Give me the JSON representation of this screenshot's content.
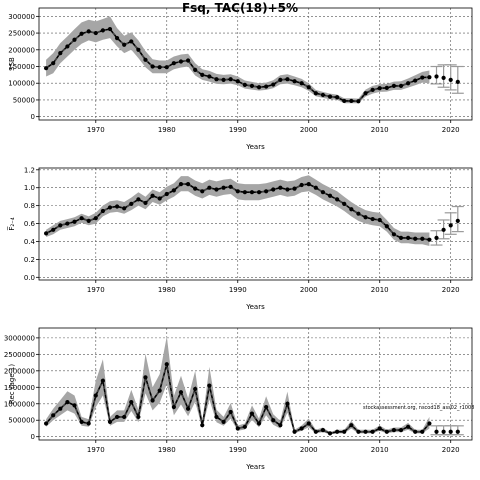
{
  "figure": {
    "title": "Fsq, TAC(18)+5%",
    "watermark": "stockassessment.org, nscod18_ass02_r1008"
  },
  "chart_data": [
    {
      "type": "line",
      "id": "ssb",
      "ylabel": "SSB",
      "xlabel": "Years",
      "xlim": [
        1962,
        2023
      ],
      "ylim": [
        -10000,
        325000
      ],
      "xticks": [
        1970,
        1980,
        1990,
        2000,
        2010,
        2020
      ],
      "yticks": [
        0,
        50000,
        100000,
        150000,
        200000,
        250000,
        300000
      ],
      "grid": true,
      "series": [
        {
          "role": "estimate",
          "x": [
            1963,
            1964,
            1965,
            1966,
            1967,
            1968,
            1969,
            1970,
            1971,
            1972,
            1973,
            1974,
            1975,
            1976,
            1977,
            1978,
            1979,
            1980,
            1981,
            1982,
            1983,
            1984,
            1985,
            1986,
            1987,
            1988,
            1989,
            1990,
            1991,
            1992,
            1993,
            1994,
            1995,
            1996,
            1997,
            1998,
            1999,
            2000,
            2001,
            2002,
            2003,
            2004,
            2005,
            2006,
            2007,
            2008,
            2009,
            2010,
            2011,
            2012,
            2013,
            2014,
            2015,
            2016,
            2017
          ],
          "values": [
            145000,
            160000,
            190000,
            210000,
            230000,
            248000,
            255000,
            250000,
            258000,
            262000,
            235000,
            215000,
            225000,
            200000,
            170000,
            150000,
            148000,
            148000,
            160000,
            165000,
            168000,
            140000,
            125000,
            120000,
            112000,
            110000,
            112000,
            106000,
            95000,
            92000,
            88000,
            90000,
            96000,
            110000,
            112000,
            106000,
            100000,
            88000,
            70000,
            65000,
            60000,
            58000,
            47000,
            47000,
            46000,
            70000,
            80000,
            85000,
            86000,
            92000,
            92000,
            100000,
            108000,
            117000,
            118000
          ],
          "lower": [
            120000,
            130000,
            160000,
            180000,
            200000,
            218000,
            228000,
            222000,
            230000,
            235000,
            210000,
            190000,
            200000,
            175000,
            148000,
            130000,
            130000,
            130000,
            142000,
            147000,
            150000,
            123000,
            110000,
            105000,
            98000,
            97000,
            99000,
            94000,
            84000,
            81000,
            78000,
            80000,
            85000,
            97000,
            99000,
            94000,
            88000,
            77000,
            61000,
            56000,
            52000,
            50000,
            40000,
            40000,
            40000,
            60000,
            69000,
            74000,
            75000,
            80000,
            80000,
            87000,
            94000,
            102000,
            100000
          ],
          "upper": [
            170000,
            190000,
            220000,
            240000,
            262000,
            282000,
            290000,
            285000,
            292000,
            300000,
            265000,
            242000,
            252000,
            228000,
            196000,
            172000,
            168000,
            168000,
            180000,
            186000,
            188000,
            160000,
            142000,
            137000,
            128000,
            125000,
            127000,
            120000,
            108000,
            104000,
            100000,
            102000,
            109000,
            124000,
            127000,
            120000,
            113000,
            100000,
            80000,
            74000,
            69000,
            66000,
            55000,
            55000,
            54000,
            81000,
            92000,
            97000,
            98000,
            105000,
            106000,
            114000,
            124000,
            134000,
            138000
          ]
        },
        {
          "role": "forecast",
          "x": [
            2018,
            2019,
            2020,
            2021
          ],
          "values": [
            120000,
            116000,
            110000,
            104000
          ],
          "lower": [
            98000,
            88000,
            80000,
            70000
          ],
          "upper": [
            150000,
            155000,
            155000,
            150000
          ]
        }
      ]
    },
    {
      "type": "line",
      "id": "fbar",
      "ylabel": "F̅₂₋₄",
      "xlabel": "Years",
      "xlim": [
        1962,
        2023
      ],
      "ylim": [
        -0.03,
        1.22
      ],
      "xticks": [
        1970,
        1980,
        1990,
        2000,
        2010,
        2020
      ],
      "yticks": [
        0.0,
        0.2,
        0.4,
        0.6,
        0.8,
        1.0,
        1.2
      ],
      "ytick_labels": [
        "0.0",
        "0.2",
        "0.4",
        "0.6",
        "0.8",
        "1.0",
        "1.2"
      ],
      "grid": true,
      "series": [
        {
          "role": "estimate",
          "x": [
            1963,
            1964,
            1965,
            1966,
            1967,
            1968,
            1969,
            1970,
            1971,
            1972,
            1973,
            1974,
            1975,
            1976,
            1977,
            1978,
            1979,
            1980,
            1981,
            1982,
            1983,
            1984,
            1985,
            1986,
            1987,
            1988,
            1989,
            1990,
            1991,
            1992,
            1993,
            1994,
            1995,
            1996,
            1997,
            1998,
            1999,
            2000,
            2001,
            2002,
            2003,
            2004,
            2005,
            2006,
            2007,
            2008,
            2009,
            2010,
            2011,
            2012,
            2013,
            2014,
            2015,
            2016,
            2017
          ],
          "values": [
            0.49,
            0.53,
            0.58,
            0.6,
            0.62,
            0.66,
            0.63,
            0.66,
            0.74,
            0.78,
            0.79,
            0.77,
            0.82,
            0.87,
            0.83,
            0.91,
            0.88,
            0.93,
            0.97,
            1.04,
            1.04,
            0.99,
            0.96,
            1.0,
            0.98,
            1.0,
            1.01,
            0.96,
            0.95,
            0.95,
            0.95,
            0.96,
            0.98,
            1.0,
            0.98,
            0.99,
            1.03,
            1.04,
            1.0,
            0.95,
            0.91,
            0.87,
            0.82,
            0.76,
            0.71,
            0.67,
            0.65,
            0.64,
            0.57,
            0.48,
            0.44,
            0.44,
            0.43,
            0.43,
            0.42
          ],
          "lower": [
            0.45,
            0.48,
            0.53,
            0.55,
            0.57,
            0.61,
            0.58,
            0.6,
            0.68,
            0.72,
            0.73,
            0.71,
            0.75,
            0.8,
            0.76,
            0.84,
            0.81,
            0.86,
            0.9,
            0.96,
            0.96,
            0.91,
            0.88,
            0.92,
            0.9,
            0.92,
            0.93,
            0.87,
            0.86,
            0.86,
            0.86,
            0.88,
            0.9,
            0.92,
            0.9,
            0.91,
            0.95,
            0.96,
            0.92,
            0.87,
            0.83,
            0.79,
            0.74,
            0.68,
            0.63,
            0.6,
            0.58,
            0.57,
            0.51,
            0.42,
            0.38,
            0.38,
            0.37,
            0.37,
            0.35
          ],
          "upper": [
            0.53,
            0.58,
            0.63,
            0.65,
            0.67,
            0.71,
            0.68,
            0.72,
            0.8,
            0.85,
            0.86,
            0.84,
            0.89,
            0.95,
            0.9,
            0.98,
            0.95,
            1.01,
            1.05,
            1.13,
            1.13,
            1.08,
            1.05,
            1.09,
            1.07,
            1.09,
            1.1,
            1.05,
            1.04,
            1.04,
            1.04,
            1.05,
            1.07,
            1.09,
            1.07,
            1.08,
            1.12,
            1.14,
            1.09,
            1.04,
            1.0,
            0.96,
            0.9,
            0.84,
            0.79,
            0.75,
            0.73,
            0.72,
            0.64,
            0.55,
            0.51,
            0.51,
            0.5,
            0.5,
            0.5
          ]
        },
        {
          "role": "forecast",
          "x": [
            2018,
            2019,
            2020,
            2021
          ],
          "values": [
            0.44,
            0.53,
            0.58,
            0.63
          ],
          "lower": [
            0.36,
            0.43,
            0.48,
            0.51
          ],
          "upper": [
            0.52,
            0.64,
            0.72,
            0.79
          ]
        }
      ]
    },
    {
      "type": "line",
      "id": "recruitment",
      "ylabel": "Rec (age 1)",
      "xlabel": "Years",
      "xlim": [
        1962,
        2023
      ],
      "ylim": [
        -100000,
        3300000
      ],
      "xticks": [
        1970,
        1980,
        1990,
        2000,
        2010,
        2020
      ],
      "yticks": [
        0,
        500000,
        1000000,
        1500000,
        2000000,
        2500000,
        3000000
      ],
      "grid": true,
      "series": [
        {
          "role": "estimate",
          "x": [
            1963,
            1964,
            1965,
            1966,
            1967,
            1968,
            1969,
            1970,
            1971,
            1972,
            1973,
            1974,
            1975,
            1976,
            1977,
            1978,
            1979,
            1980,
            1981,
            1982,
            1983,
            1984,
            1985,
            1986,
            1987,
            1988,
            1989,
            1990,
            1991,
            1992,
            1993,
            1994,
            1995,
            1996,
            1997,
            1998,
            1999,
            2000,
            2001,
            2002,
            2003,
            2004,
            2005,
            2006,
            2007,
            2008,
            2009,
            2010,
            2011,
            2012,
            2013,
            2014,
            2015,
            2016,
            2017
          ],
          "values": [
            400000,
            650000,
            850000,
            1050000,
            950000,
            450000,
            400000,
            1250000,
            1700000,
            450000,
            600000,
            600000,
            1050000,
            600000,
            1800000,
            1100000,
            1400000,
            2200000,
            900000,
            1350000,
            850000,
            1450000,
            350000,
            1550000,
            600000,
            450000,
            750000,
            250000,
            300000,
            700000,
            400000,
            900000,
            500000,
            350000,
            1000000,
            150000,
            250000,
            400000,
            150000,
            200000,
            100000,
            150000,
            150000,
            350000,
            150000,
            150000,
            150000,
            250000,
            150000,
            200000,
            200000,
            300000,
            150000,
            150000,
            400000
          ],
          "lower": [
            300000,
            500000,
            650000,
            800000,
            700000,
            330000,
            300000,
            900000,
            1250000,
            330000,
            450000,
            450000,
            780000,
            440000,
            1320000,
            800000,
            1030000,
            1600000,
            650000,
            980000,
            620000,
            1060000,
            250000,
            1130000,
            440000,
            330000,
            550000,
            180000,
            220000,
            510000,
            290000,
            650000,
            360000,
            250000,
            730000,
            100000,
            180000,
            290000,
            100000,
            140000,
            70000,
            100000,
            100000,
            250000,
            100000,
            100000,
            100000,
            180000,
            100000,
            140000,
            140000,
            210000,
            100000,
            100000,
            250000
          ],
          "upper": [
            530000,
            850000,
            1110000,
            1380000,
            1250000,
            600000,
            530000,
            1700000,
            2350000,
            600000,
            800000,
            800000,
            1420000,
            820000,
            2520000,
            1500000,
            1900000,
            3050000,
            1240000,
            1850000,
            1170000,
            2000000,
            480000,
            2120000,
            820000,
            600000,
            1020000,
            340000,
            400000,
            950000,
            550000,
            1230000,
            680000,
            480000,
            1370000,
            210000,
            340000,
            550000,
            210000,
            280000,
            140000,
            210000,
            210000,
            480000,
            210000,
            210000,
            210000,
            340000,
            210000,
            280000,
            280000,
            420000,
            210000,
            210000,
            600000
          ]
        },
        {
          "role": "forecast",
          "x": [
            2018,
            2019,
            2020,
            2021
          ],
          "values": [
            150000,
            150000,
            150000,
            150000
          ],
          "lower": [
            60000,
            60000,
            60000,
            60000
          ],
          "upper": [
            330000,
            330000,
            330000,
            330000
          ]
        }
      ]
    }
  ]
}
